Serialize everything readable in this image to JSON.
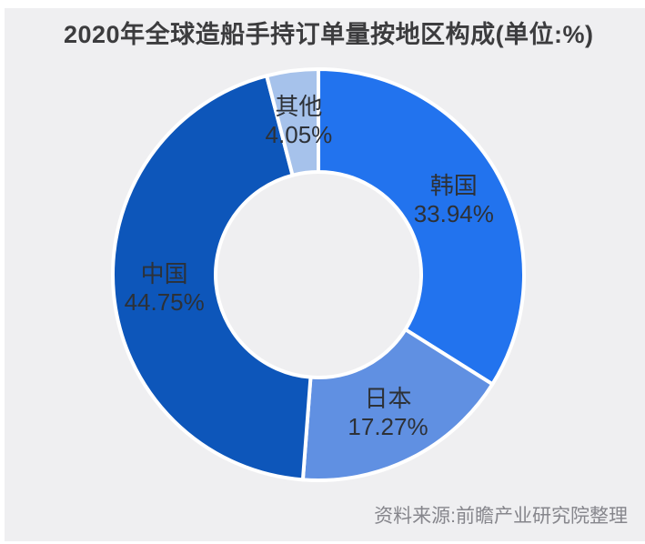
{
  "page": {
    "background_color": "#efeff1",
    "source_note": "资料来源:前瞻产业研究院整理"
  },
  "chart_data": {
    "type": "pie",
    "subtype": "donut",
    "title": "2020年全球造船手持订单量按地区构成(单位:%)",
    "unit": "%",
    "start_angle_deg": 0,
    "direction": "clockwise",
    "inner_radius_ratio": 0.5,
    "separator_color": "#ffffff",
    "label_color": "#2d3137",
    "title_color": "#3c3c3e",
    "source_color": "#86868c",
    "slices": [
      {
        "label": "韩国",
        "value": 33.94,
        "value_label": "33.94%",
        "color": "#2273ee"
      },
      {
        "label": "日本",
        "value": 17.27,
        "value_label": "17.27%",
        "color": "#6090e2"
      },
      {
        "label": "中国",
        "value": 44.75,
        "value_label": "44.75%",
        "color": "#0d56ba"
      },
      {
        "label": "其他",
        "value": 4.05,
        "value_label": "4.05%",
        "color": "#a6c2eb"
      }
    ]
  }
}
